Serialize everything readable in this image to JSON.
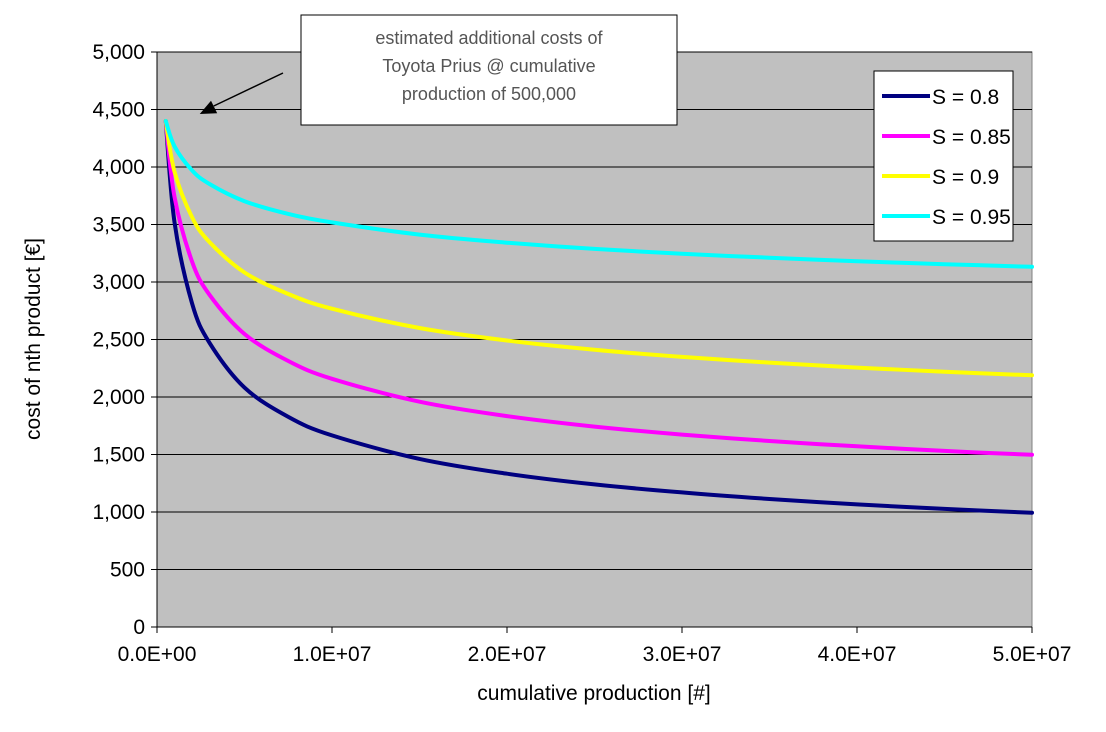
{
  "chart_data": {
    "type": "line",
    "title": "",
    "xlabel": "cumulative production [#]",
    "ylabel": "cost of nth product [€]",
    "xlim": [
      0,
      50000000
    ],
    "ylim": [
      0,
      5000
    ],
    "x_ticks": [
      0,
      10000000,
      20000000,
      30000000,
      40000000,
      50000000
    ],
    "x_tick_labels": [
      "0.0E+00",
      "1.0E+07",
      "2.0E+07",
      "3.0E+07",
      "4.0E+07",
      "5.0E+07"
    ],
    "y_ticks": [
      0,
      500,
      1000,
      1500,
      2000,
      2500,
      3000,
      3500,
      4000,
      4500,
      5000
    ],
    "y_tick_labels": [
      "0",
      "500",
      "1,000",
      "1,500",
      "2,000",
      "2,500",
      "3,000",
      "3,500",
      "4,000",
      "4,500",
      "5,000"
    ],
    "grid": "horizontal",
    "plot_background": "#c0c0c0",
    "legend_position": "top-right",
    "annotation": {
      "lines": [
        "estimated additional costs of",
        "Toyota Prius @ cumulative",
        "production of 500,000"
      ],
      "target_x": 500000,
      "target_y": 4400
    },
    "x": [
      500000,
      1000000,
      2000000,
      3000000,
      5000000,
      7500000,
      10000000,
      15000000,
      20000000,
      25000000,
      30000000,
      35000000,
      40000000,
      45000000,
      50000000
    ],
    "series": [
      {
        "name": "S = 0.8",
        "color": "#000080",
        "values": [
          4400,
          3520,
          2816,
          2471,
          2082,
          1827,
          1666,
          1462,
          1333,
          1240,
          1170,
          1113,
          1066,
          1027,
          993
        ]
      },
      {
        "name": "S = 0.85",
        "color": "#ff00ff",
        "values": [
          4400,
          3740,
          3179,
          2889,
          2548,
          2313,
          2158,
          1959,
          1834,
          1743,
          1673,
          1617,
          1571,
          1531,
          1497
        ]
      },
      {
        "name": "S = 0.9",
        "color": "#ffff00",
        "values": [
          4400,
          3960,
          3564,
          3347,
          3083,
          2896,
          2768,
          2600,
          2491,
          2411,
          2349,
          2299,
          2256,
          2220,
          2189
        ]
      },
      {
        "name": "S = 0.95",
        "color": "#00ffff",
        "values": [
          4400,
          4180,
          3971,
          3852,
          3703,
          3592,
          3518,
          3412,
          3342,
          3288,
          3246,
          3211,
          3181,
          3155,
          3132
        ]
      }
    ]
  }
}
